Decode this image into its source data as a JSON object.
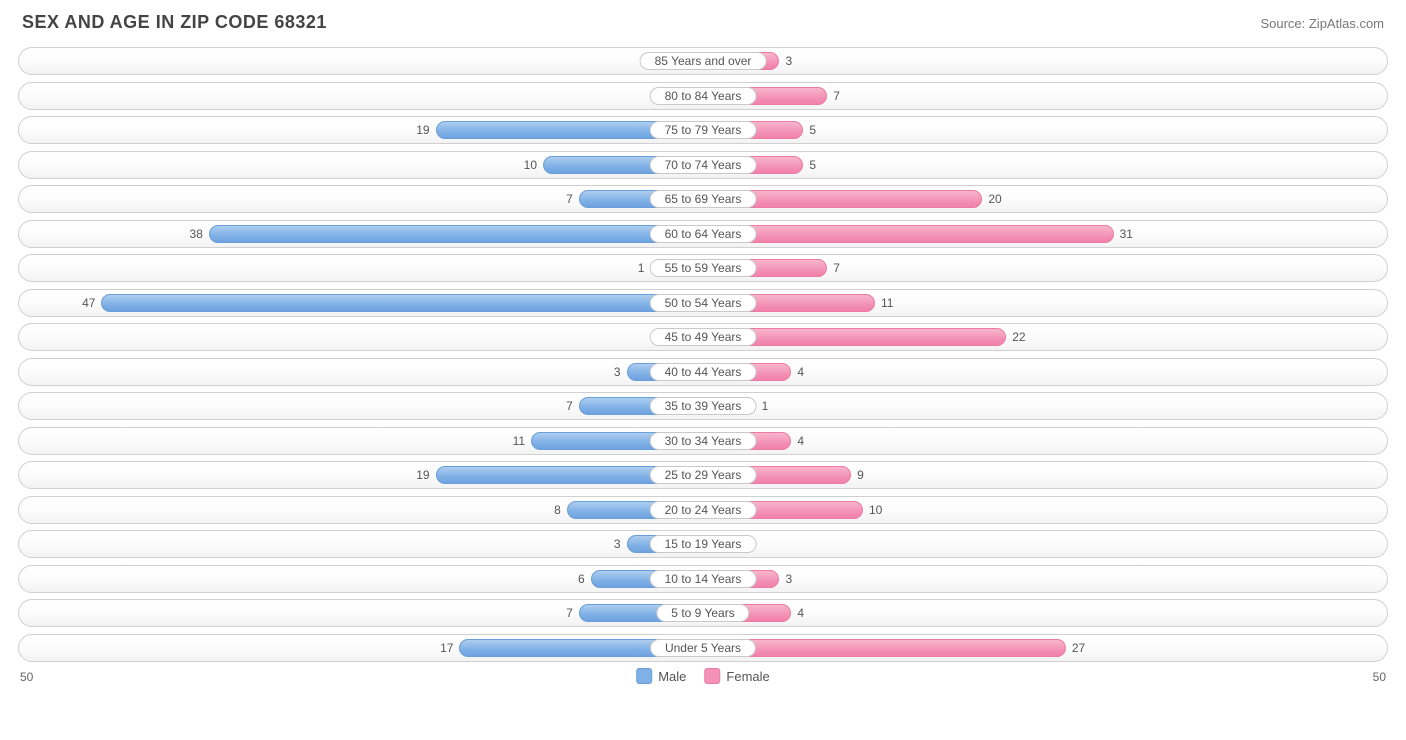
{
  "title": "SEX AND AGE IN ZIP CODE 68321",
  "source": "Source: ZipAtlas.com",
  "chart": {
    "type": "population-pyramid",
    "axis_max": 50,
    "axis_label_left": "50",
    "axis_label_right": "50",
    "male_color": "#7fb0e6",
    "female_color": "#f392b5",
    "male_border": "#6a9ed8",
    "female_border": "#ec7aa3",
    "row_border": "#d0d0d0",
    "text_color": "#555555",
    "background": "#ffffff",
    "pill_min_width": 6,
    "legend": [
      {
        "label": "Male",
        "color": "#7fb0e6",
        "border": "#6a9ed8"
      },
      {
        "label": "Female",
        "color": "#f392b5",
        "border": "#ec7aa3"
      }
    ],
    "rows": [
      {
        "category": "85 Years and over",
        "male": 0,
        "female": 3
      },
      {
        "category": "80 to 84 Years",
        "male": 0,
        "female": 7
      },
      {
        "category": "75 to 79 Years",
        "male": 19,
        "female": 5
      },
      {
        "category": "70 to 74 Years",
        "male": 10,
        "female": 5
      },
      {
        "category": "65 to 69 Years",
        "male": 7,
        "female": 20
      },
      {
        "category": "60 to 64 Years",
        "male": 38,
        "female": 31
      },
      {
        "category": "55 to 59 Years",
        "male": 1,
        "female": 7
      },
      {
        "category": "50 to 54 Years",
        "male": 47,
        "female": 11
      },
      {
        "category": "45 to 49 Years",
        "male": 0,
        "female": 22
      },
      {
        "category": "40 to 44 Years",
        "male": 3,
        "female": 4
      },
      {
        "category": "35 to 39 Years",
        "male": 7,
        "female": 1
      },
      {
        "category": "30 to 34 Years",
        "male": 11,
        "female": 4
      },
      {
        "category": "25 to 29 Years",
        "male": 19,
        "female": 9
      },
      {
        "category": "20 to 24 Years",
        "male": 8,
        "female": 10
      },
      {
        "category": "15 to 19 Years",
        "male": 3,
        "female": 0
      },
      {
        "category": "10 to 14 Years",
        "male": 6,
        "female": 3
      },
      {
        "category": "5 to 9 Years",
        "male": 7,
        "female": 4
      },
      {
        "category": "Under 5 Years",
        "male": 17,
        "female": 27
      }
    ]
  }
}
